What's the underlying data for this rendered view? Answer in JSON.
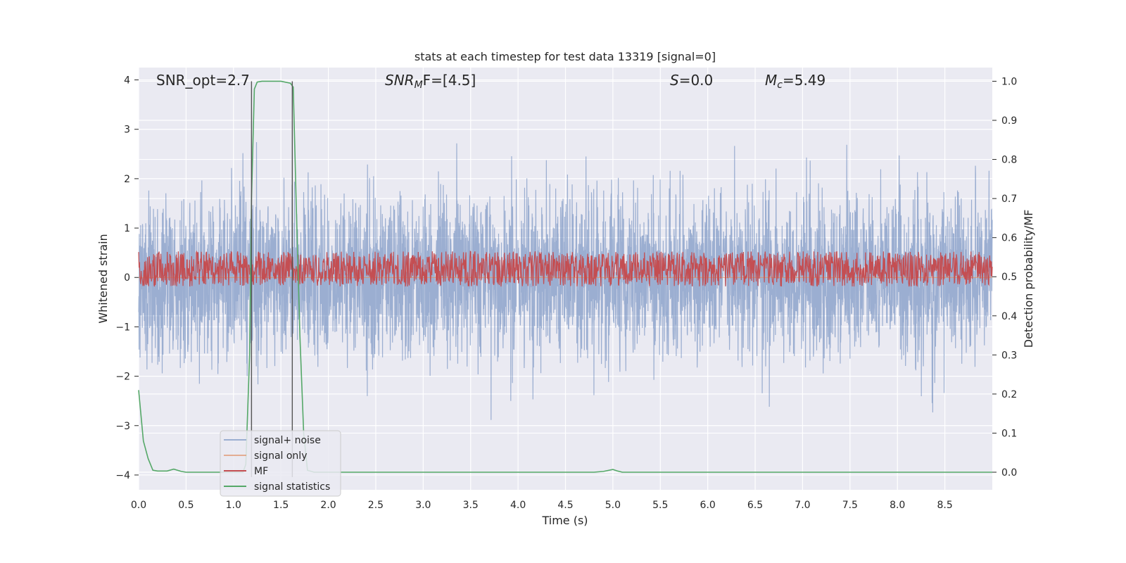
{
  "chart_data": {
    "type": "line",
    "title": "stats at each timestep for test data 13319 [signal=0]",
    "xlabel": "Time (s)",
    "ylabel_left": "Whitened strain",
    "ylabel_right": "Detection probability/MF",
    "xlim": [
      0,
      9.0
    ],
    "ylim_left": [
      -4.3,
      4.25
    ],
    "ylim_right": [
      -0.045,
      1.035
    ],
    "x_ticks": [
      "0.0",
      "0.5",
      "1.0",
      "1.5",
      "2.0",
      "2.5",
      "3.0",
      "3.5",
      "4.0",
      "4.5",
      "5.0",
      "5.5",
      "6.0",
      "6.5",
      "7.0",
      "7.5",
      "8.0",
      "8.5"
    ],
    "x_tick_values": [
      0.0,
      0.5,
      1.0,
      1.5,
      2.0,
      2.5,
      3.0,
      3.5,
      4.0,
      4.5,
      5.0,
      5.5,
      6.0,
      6.5,
      7.0,
      7.5,
      8.0,
      8.5
    ],
    "y_left_ticks": [
      "4",
      "3",
      "2",
      "1",
      "0",
      "−1",
      "−2",
      "−3",
      "−4"
    ],
    "y_left_tick_values": [
      4,
      3,
      2,
      1,
      0,
      -1,
      -2,
      -3,
      -4
    ],
    "y_right_ticks": [
      "1.0",
      "0.9",
      "0.8",
      "0.7",
      "0.6",
      "0.5",
      "0.4",
      "0.3",
      "0.2",
      "0.1",
      "0.0"
    ],
    "y_right_tick_values": [
      1.0,
      0.9,
      0.8,
      0.7,
      0.6,
      0.5,
      0.4,
      0.3,
      0.2,
      0.1,
      0.0
    ],
    "grid": true,
    "annotations": [
      {
        "id": "snr_opt",
        "text": "SNR_opt=2.7"
      },
      {
        "id": "snr_mf",
        "text": "SNR",
        "sub": "M",
        "tail": "F=[4.5]"
      },
      {
        "id": "s_val",
        "text": "S",
        "tail": "=0.0"
      },
      {
        "id": "mc_val",
        "text": "M",
        "sub": "c",
        "tail": "=5.49"
      }
    ],
    "vlines_x": [
      1.19,
      1.62
    ],
    "legend": {
      "placement": "lower-left",
      "entries": [
        {
          "label": "signal+ noise",
          "color": "#4c72b0"
        },
        {
          "label": "signal only",
          "color": "#dd8452"
        },
        {
          "label": "MF",
          "color": "#c44e52"
        },
        {
          "label": "signal statistics",
          "color": "#55a868"
        }
      ]
    },
    "series": [
      {
        "name": "signal+ noise",
        "axis": "left",
        "kind": "noise",
        "sigma": 0.8,
        "seed": 13319,
        "color": "#4c72b0"
      },
      {
        "name": "signal only",
        "axis": "left",
        "kind": "flat",
        "value": 0,
        "color": "#dd8452"
      },
      {
        "name": "MF",
        "axis": "right",
        "kind": "noise",
        "mean": 0.52,
        "amplitude": 0.045,
        "seed": 4501,
        "color": "#c44e52"
      },
      {
        "name": "signal statistics",
        "axis": "right",
        "color": "#55a868",
        "x": [
          0.0,
          0.05,
          0.1,
          0.15,
          0.2,
          0.3,
          0.37,
          0.45,
          0.5,
          0.6,
          1.0,
          1.1,
          1.13,
          1.17,
          1.19,
          1.22,
          1.25,
          1.3,
          1.5,
          1.6,
          1.63,
          1.66,
          1.7,
          1.74,
          1.78,
          1.85,
          1.9,
          2.0,
          3.0,
          4.0,
          4.8,
          4.9,
          5.0,
          5.05,
          5.1,
          6.0,
          7.0,
          8.0,
          9.0
        ],
        "y": [
          0.21,
          0.08,
          0.035,
          0.005,
          0.003,
          0.003,
          0.008,
          0.002,
          0.0,
          0.0,
          0.0,
          0.0,
          0.02,
          0.3,
          0.7,
          0.98,
          0.998,
          1.0,
          1.0,
          0.995,
          0.985,
          0.7,
          0.35,
          0.1,
          0.005,
          0.0,
          0.0,
          0.0,
          0.0,
          0.0,
          0.0,
          0.002,
          0.007,
          0.003,
          0.0,
          0.0,
          0.0,
          0.0,
          0.0
        ]
      }
    ]
  }
}
